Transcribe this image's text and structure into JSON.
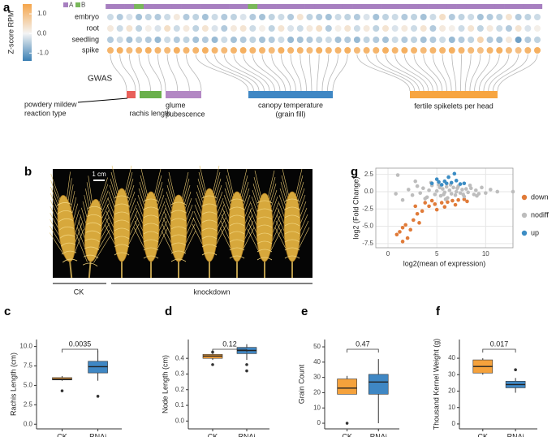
{
  "chart_data": [
    {
      "panel": "a",
      "type": "dotmatrix",
      "colorbar": {
        "title": "Z-score RPM",
        "lim": [
          -1.4,
          1.5
        ],
        "ticks": [
          {
            "value": 1,
            "label": "1.0"
          },
          {
            "value": 0,
            "label": "0.0"
          },
          {
            "value": -1,
            "label": "-1.0"
          }
        ],
        "low_color": "#3b7fb3",
        "mid_color": "#f4f4f4",
        "high_color": "#f5a54a"
      },
      "legend": [
        {
          "name": "A",
          "color": "#a77fc0"
        },
        {
          "name": "B",
          "color": "#79b85a"
        }
      ],
      "subgenome": [
        "A",
        "A",
        "A",
        "B",
        "A",
        "A",
        "A",
        "A",
        "A",
        "A",
        "A",
        "A",
        "A",
        "A",
        "A",
        "B",
        "A",
        "A",
        "A",
        "A",
        "A",
        "A",
        "A",
        "A",
        "A",
        "A",
        "A",
        "A",
        "A",
        "A",
        "A",
        "A",
        "A",
        "A",
        "A",
        "A",
        "A",
        "A",
        "A",
        "A",
        "A",
        "A",
        "A",
        "A",
        "A",
        "A"
      ],
      "rows": [
        {
          "name": "embryo",
          "values": [
            -0.3,
            -0.5,
            -0.2,
            -0.6,
            -0.4,
            -0.5,
            -0.3,
            0.2,
            -0.5,
            -0.4,
            -0.6,
            -0.3,
            -0.5,
            -0.4,
            -0.2,
            -0.5,
            -0.6,
            -0.4,
            -0.3,
            -0.5,
            0.3,
            -0.4,
            -0.5,
            -0.6,
            -0.3,
            -0.4,
            -0.5,
            -0.2,
            -0.6,
            -0.4,
            -0.3,
            -0.5,
            -0.4,
            -0.6,
            -0.3,
            0.4,
            -0.5,
            -0.4,
            -0.3,
            -0.6,
            -0.5,
            -0.4,
            0.3,
            -0.5,
            -0.4,
            -0.3
          ]
        },
        {
          "name": "root",
          "values": [
            0.2,
            -0.3,
            0.3,
            -0.4,
            0.1,
            -0.2,
            0.4,
            -0.3,
            0.2,
            -0.4,
            0.3,
            -0.2,
            -0.5,
            0.2,
            0.3,
            -0.3,
            0.1,
            -0.4,
            0.3,
            -0.2,
            -0.3,
            0.2,
            0.4,
            -0.5,
            0.1,
            0.3,
            -0.3,
            0.2,
            -0.4,
            0.3,
            -0.2,
            0.2,
            -0.3,
            0.3,
            -0.5,
            0.2,
            0.1,
            -0.3,
            0.3,
            -0.4,
            0.2,
            -0.3,
            -0.5,
            0.3,
            -0.2,
            0.1
          ]
        },
        {
          "name": "seedling",
          "values": [
            -0.5,
            -0.3,
            -0.6,
            -0.4,
            -0.5,
            -0.7,
            -0.3,
            -0.5,
            -0.4,
            -0.6,
            -0.5,
            -0.7,
            -0.3,
            -0.6,
            -0.5,
            -0.4,
            -0.6,
            -0.5,
            -0.3,
            -0.7,
            -0.6,
            -0.5,
            -0.4,
            -0.3,
            -0.6,
            -0.5,
            -0.7,
            -0.4,
            -0.5,
            -0.6,
            -0.3,
            -0.5,
            -0.4,
            -0.6,
            -0.5,
            -0.3,
            -0.7,
            -0.5,
            -0.4,
            0.6,
            -0.5,
            -0.6,
            0.2,
            -1.0,
            -0.5,
            -0.4
          ]
        },
        {
          "name": "spike",
          "values": [
            1.2,
            1.3,
            1.1,
            1.2,
            1.3,
            1.2,
            1.1,
            1.3,
            1.2,
            1.2,
            1.3,
            1.2,
            1.1,
            1.2,
            1.3,
            1.2,
            1.2,
            1.1,
            1.3,
            1.2,
            1.2,
            1.1,
            1.3,
            1.2,
            1.2,
            1.3,
            1.1,
            1.2,
            1.2,
            1.3,
            1.2,
            1.3,
            1.2,
            1.1,
            1.2,
            1.2,
            1.3,
            1.2,
            1.1,
            1.0,
            1.2,
            1.3,
            1.1,
            1.0,
            1.2,
            1.3
          ]
        }
      ],
      "gwas_label": "GWAS",
      "traits": [
        {
          "label": [
            "powdery mildew",
            "reaction type"
          ],
          "color": "#e8605a"
        },
        {
          "label": [
            "rachis length"
          ],
          "color": "#6ab04c"
        },
        {
          "label": [
            "glume",
            "pubescence"
          ],
          "color": "#b388c4"
        },
        {
          "label": [
            "canopy temperature",
            "(grain fill)"
          ],
          "color": "#3f87c4"
        },
        {
          "label": [
            "fertile spikelets per head"
          ],
          "color": "#f7a541"
        }
      ],
      "links": [
        0,
        0,
        1,
        1,
        1,
        2,
        2,
        2,
        2,
        3,
        3,
        3,
        3,
        3,
        3,
        3,
        3,
        3,
        3,
        3,
        3,
        3,
        3,
        3,
        3,
        3,
        4,
        4,
        4,
        4,
        4,
        4,
        4,
        4,
        4,
        4,
        4,
        4,
        4,
        4,
        4,
        4,
        4,
        4,
        4,
        4
      ]
    },
    {
      "panel": "b",
      "type": "image",
      "scale_label": "1 cm",
      "groups": [
        "CK",
        "knockdown"
      ]
    },
    {
      "panel": "g",
      "type": "scatter",
      "xlabel": "log2(mean of expression)",
      "ylabel": "log2 (Fold Change)",
      "xlim": [
        -1.25,
        12.8
      ],
      "ylim": [
        -8.1,
        3.4
      ],
      "xticks": [
        0,
        5,
        10
      ],
      "yticks": [
        2.5,
        {
          "value": 0,
          "label": "0.0"
        },
        -2.5,
        {
          "value": -5,
          "label": "-5.0"
        },
        -7.5
      ],
      "grid": true,
      "legend": "right",
      "series": [
        {
          "name": "down",
          "color": "#e07b39",
          "x": [
            1.2,
            1.5,
            0.9,
            1.8,
            2.3,
            2.0,
            2.6,
            3.0,
            3.5,
            4.2,
            4.8,
            5.5,
            6.1,
            6.6,
            7.2,
            7.8,
            3.8,
            5.0,
            5.8,
            4.5,
            6.9,
            2.8,
            8.1,
            3.2,
            1.5
          ],
          "y": [
            -5.8,
            -5.2,
            -6.2,
            -4.8,
            -5.5,
            -6.7,
            -4.1,
            -3.2,
            -2.8,
            -2.1,
            -1.8,
            -1.6,
            -1.5,
            -1.3,
            -1.2,
            -1.1,
            -1.6,
            -2.6,
            -2.2,
            -1.3,
            -1.9,
            -2.1,
            -1.4,
            -4.5,
            -7.2
          ]
        },
        {
          "name": "nodiff",
          "color": "#bdbdbd",
          "x": [
            2.1,
            2.5,
            3.0,
            3.3,
            3.6,
            4.0,
            4.2,
            4.5,
            4.8,
            5.0,
            5.2,
            5.4,
            5.6,
            5.8,
            6.0,
            6.1,
            6.3,
            6.5,
            6.7,
            6.9,
            7.0,
            7.2,
            7.4,
            7.6,
            7.8,
            8.0,
            8.2,
            8.5,
            8.8,
            9.0,
            9.3,
            9.6,
            10.0,
            10.5,
            11.2,
            12.8,
            1.0,
            0.8,
            1.5,
            3.8,
            4.4,
            5.3,
            5.9,
            6.4,
            7.1,
            7.7,
            8.4,
            9.1,
            2.8,
            5.7
          ],
          "y": [
            0.3,
            -0.5,
            0.8,
            -0.2,
            0.5,
            -0.8,
            0.2,
            0.9,
            -0.4,
            0.1,
            1.0,
            -0.6,
            0.4,
            -0.1,
            0.7,
            -0.9,
            0.2,
            -0.3,
            0.6,
            -0.5,
            0.0,
            0.8,
            -0.2,
            0.3,
            -0.7,
            0.4,
            -0.1,
            0.5,
            -0.4,
            0.2,
            -0.3,
            0.6,
            -0.2,
            0.3,
            0.0,
            0.0,
            2.4,
            -0.3,
            -1.2,
            -1.0,
            1.3,
            0.6,
            -1.1,
            1.0,
            0.5,
            -0.4,
            0.9,
            -0.6,
            1.5,
            -0.4
          ]
        },
        {
          "name": "up",
          "color": "#3c8dc4",
          "x": [
            4.5,
            5.0,
            5.8,
            6.2,
            6.5,
            7.0,
            7.4,
            6.8,
            5.5,
            7.8,
            6.0,
            5.2
          ],
          "y": [
            1.2,
            1.8,
            1.5,
            2.1,
            1.3,
            1.6,
            1.1,
            2.6,
            1.0,
            1.2,
            1.2,
            1.4
          ]
        }
      ]
    },
    {
      "panel": "c",
      "type": "box",
      "ylabel": "Rachis Length (cm)",
      "categories": [
        "CK",
        "RNAi"
      ],
      "colors": [
        "#f5a23c",
        "#3f87c4"
      ],
      "ylim": [
        -0.6,
        10.9
      ],
      "yticks": [
        {
          "value": 0,
          "label": "0.0"
        },
        2.5,
        {
          "value": 5,
          "label": "5.0"
        },
        7.5,
        {
          "value": 10,
          "label": "10.0"
        }
      ],
      "boxes": [
        {
          "whislo": 5.6,
          "q1": 5.7,
          "median": 5.8,
          "q3": 6.0,
          "whishi": 6.2,
          "outliers": [
            4.3
          ]
        },
        {
          "whislo": 5.6,
          "q1": 6.6,
          "median": 7.4,
          "q3": 8.1,
          "whishi": 9.5,
          "outliers": [
            3.6
          ]
        }
      ],
      "pvalue": 0.0035
    },
    {
      "panel": "d",
      "type": "box",
      "ylabel": "Node Length (cm)",
      "categories": [
        "CK",
        "RNAi"
      ],
      "colors": [
        "#f5a23c",
        "#3f87c4"
      ],
      "ylim": [
        -0.05,
        0.52
      ],
      "yticks": [
        {
          "value": 0,
          "label": "0.0"
        },
        0.1,
        0.2,
        0.3,
        0.4
      ],
      "boxes": [
        {
          "whislo": 0.39,
          "q1": 0.4,
          "median": 0.415,
          "q3": 0.425,
          "whishi": 0.43,
          "outliers": [
            0.44,
            0.36
          ]
        },
        {
          "whislo": 0.39,
          "q1": 0.43,
          "median": 0.45,
          "q3": 0.47,
          "whishi": 0.49,
          "outliers": [
            0.36,
            0.32
          ]
        }
      ],
      "pvalue": 0.12
    },
    {
      "panel": "e",
      "type": "box",
      "ylabel": "Grain Count",
      "categories": [
        "CK",
        "RNAi"
      ],
      "colors": [
        "#f5a23c",
        "#3f87c4"
      ],
      "ylim": [
        -3.7,
        54.8
      ],
      "yticks": [
        0,
        10,
        20,
        30,
        40,
        50
      ],
      "boxes": [
        {
          "whislo": 19,
          "q1": 19,
          "median": 23,
          "q3": 29,
          "whishi": 31,
          "outliers": [
            0
          ]
        },
        {
          "whislo": 0,
          "q1": 19,
          "median": 27,
          "q3": 32,
          "whishi": 42,
          "outliers": []
        }
      ],
      "pvalue": 0.47
    },
    {
      "panel": "f",
      "type": "box",
      "ylabel": "Thousand Kernel Weight (g)",
      "categories": [
        "CK",
        "RNAi"
      ],
      "colors": [
        "#f5a23c",
        "#3f87c4"
      ],
      "ylim": [
        -3,
        51.4
      ],
      "yticks": [
        0,
        10,
        20,
        30,
        40
      ],
      "boxes": [
        {
          "whislo": 30,
          "q1": 31,
          "median": 35,
          "q3": 39,
          "whishi": 40,
          "outliers": []
        },
        {
          "whislo": 19,
          "q1": 22,
          "median": 24,
          "q3": 26,
          "whishi": 28,
          "outliers": [
            33
          ]
        }
      ],
      "pvalue": 0.017
    }
  ]
}
